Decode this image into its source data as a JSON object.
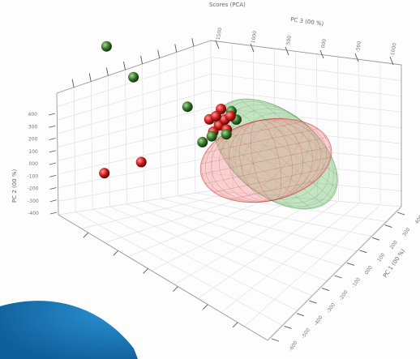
{
  "chart_data": {
    "type": "scatter",
    "title": "",
    "top_label": "Scores (PCA)",
    "xlabel": "PC 3 (00 %)",
    "ylabel": "PC 2 (00 %)",
    "zlabel": "PC 1 (00 %)",
    "ticks": {
      "pc3": [
        "1500",
        "1000",
        "500",
        "000",
        "-500",
        "-1000"
      ],
      "pc2": [
        "400",
        "300",
        "200",
        "100",
        "000",
        "-100",
        "-200",
        "-300",
        "-400"
      ],
      "pc1": [
        "400",
        "300",
        "200",
        "100",
        "000",
        "-100",
        "-200",
        "-300",
        "-400",
        "-500",
        "-600"
      ]
    },
    "series": [
      {
        "color": "#cc1f1f",
        "points": [
          [
            -1100,
            -150,
            -300
          ],
          [
            -700,
            -100,
            -300
          ],
          [
            150,
            80,
            50
          ],
          [
            200,
            100,
            -20
          ],
          [
            250,
            50,
            30
          ],
          [
            300,
            80,
            0
          ],
          [
            350,
            100,
            -40
          ],
          [
            180,
            20,
            10
          ],
          [
            280,
            130,
            60
          ],
          [
            320,
            30,
            -10
          ]
        ]
      },
      {
        "color": "#3a7a2a",
        "points": [
          [
            -900,
            450,
            250
          ],
          [
            -650,
            300,
            120
          ],
          [
            -100,
            150,
            10
          ],
          [
            250,
            70,
            40
          ],
          [
            150,
            0,
            -30
          ],
          [
            380,
            120,
            20
          ],
          [
            60,
            -30,
            0
          ],
          [
            300,
            10,
            -60
          ],
          [
            420,
            80,
            -20
          ]
        ]
      }
    ],
    "confidence_ellipses": [
      {
        "color": "#e56a6a",
        "fill_opacity": 0.35
      },
      {
        "color": "#7cc47c",
        "fill_opacity": 0.5
      }
    ]
  }
}
